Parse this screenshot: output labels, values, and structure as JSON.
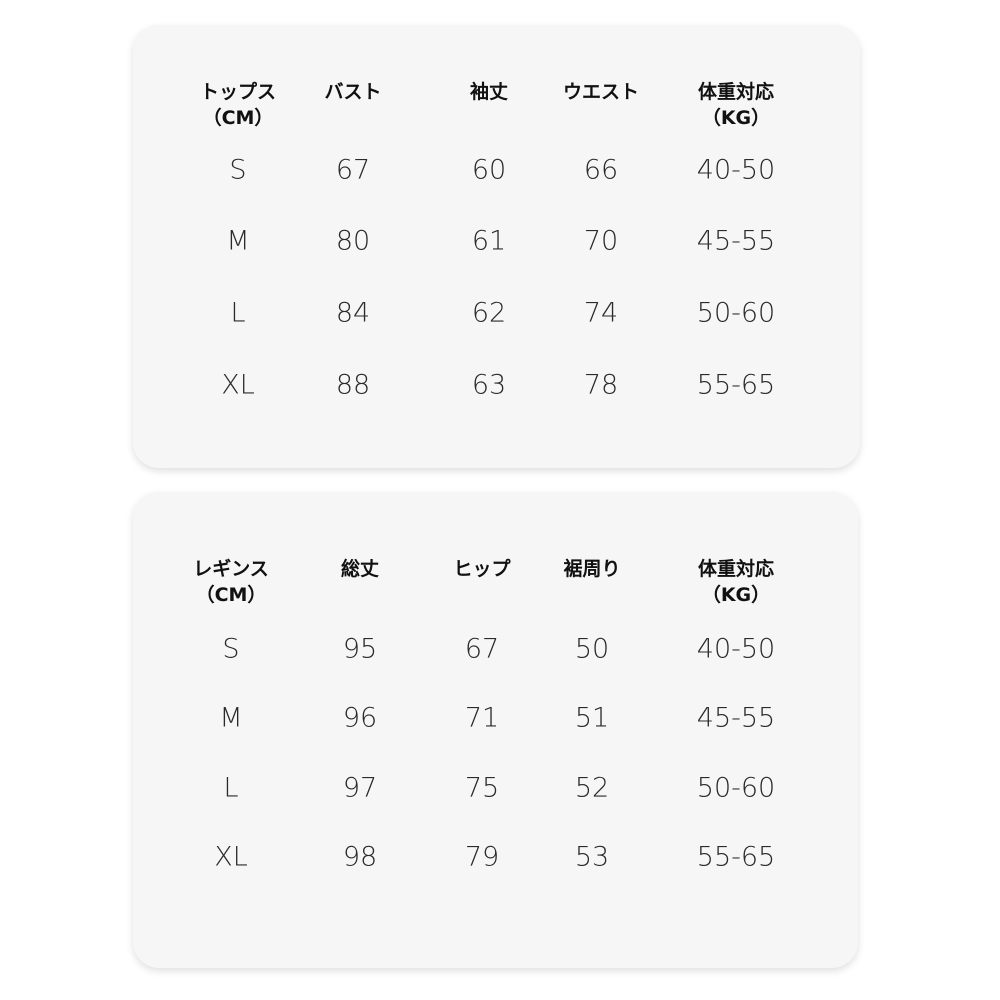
{
  "tops": {
    "headers": [
      {
        "line1": "トップス",
        "line2": "（CM）"
      },
      {
        "line1": "バスト",
        "line2": ""
      },
      {
        "line1": "袖丈",
        "line2": ""
      },
      {
        "line1": "ウエスト",
        "line2": ""
      },
      {
        "line1": "体重対応",
        "line2": "（KG）"
      }
    ],
    "rows": [
      [
        "S",
        "67",
        "60",
        "66",
        "40-50"
      ],
      [
        "M",
        "80",
        "61",
        "70",
        "45-55"
      ],
      [
        "L",
        "84",
        "62",
        "74",
        "50-60"
      ],
      [
        "XL",
        "88",
        "63",
        "78",
        "55-65"
      ]
    ]
  },
  "leggings": {
    "headers": [
      {
        "line1": "レギンス",
        "line2": "（CM）"
      },
      {
        "line1": "総丈",
        "line2": ""
      },
      {
        "line1": "ヒップ",
        "line2": ""
      },
      {
        "line1": "裾周り",
        "line2": ""
      },
      {
        "line1": "体重対応",
        "line2": "（KG）"
      }
    ],
    "rows": [
      [
        "S",
        "95",
        "67",
        "50",
        "40-50"
      ],
      [
        "M",
        "96",
        "71",
        "51",
        "45-55"
      ],
      [
        "L",
        "97",
        "75",
        "52",
        "50-60"
      ],
      [
        "XL",
        "98",
        "79",
        "53",
        "55-65"
      ]
    ]
  }
}
